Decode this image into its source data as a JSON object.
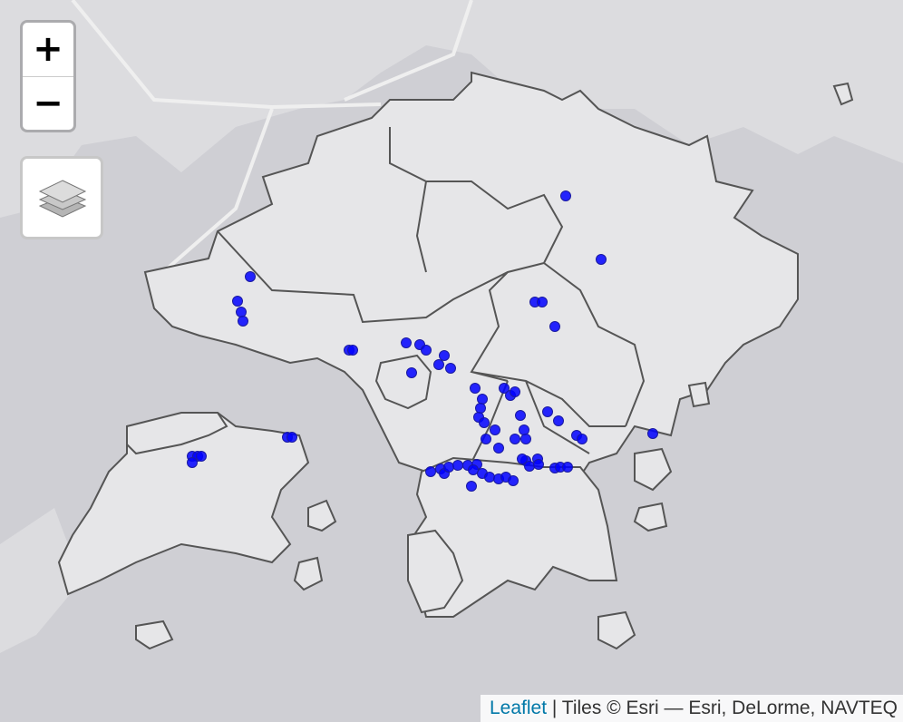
{
  "map": {
    "zoom_in_label": "+",
    "zoom_out_label": "−",
    "layers_icon": "layers-icon",
    "colors": {
      "water": "#cfcfd4",
      "land": "#e6e6e8",
      "boundary": "#555555",
      "marker_fill": "#0000ff",
      "marker_stroke": "#1a1aa0"
    }
  },
  "attribution": {
    "leaflet_link": "Leaflet",
    "separator": " | ",
    "tiles_text": "Tiles © Esri — Esri, DeLorme, NAVTEQ"
  }
}
